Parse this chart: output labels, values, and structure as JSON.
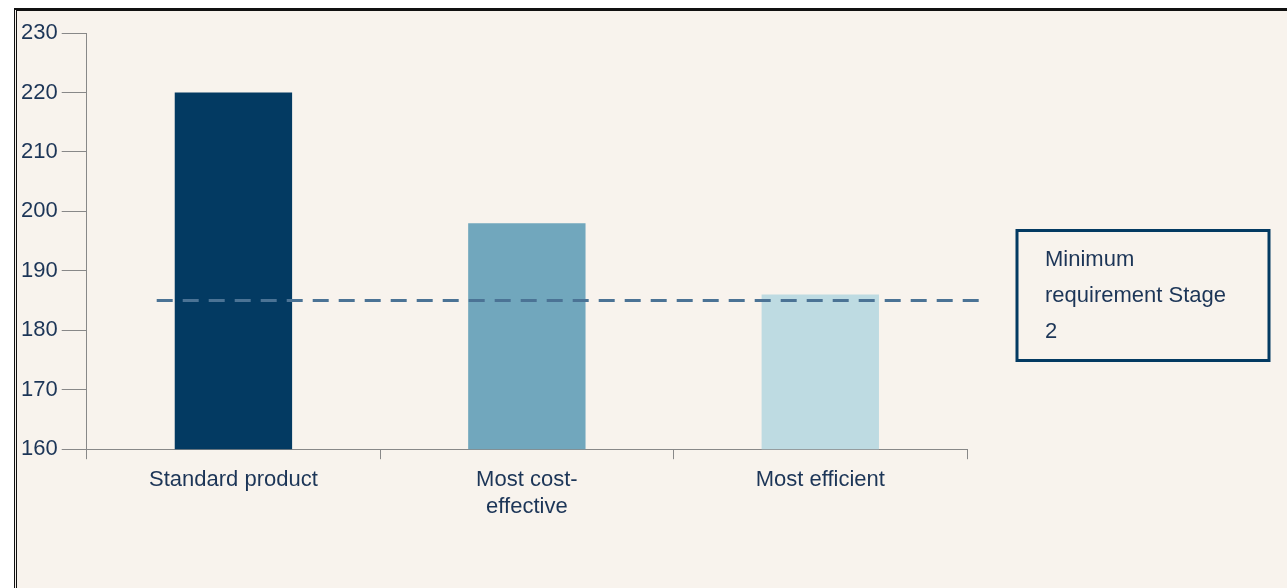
{
  "chart_data": {
    "type": "bar",
    "categories": [
      "Standard product",
      "Most cost-effective",
      "Most efficient"
    ],
    "values": [
      220,
      198,
      186
    ],
    "colors": [
      "#033a62",
      "#71a7bd",
      "#bedbe2"
    ],
    "ylim": [
      160,
      230
    ],
    "yticks": [
      160,
      170,
      180,
      190,
      200,
      210,
      220,
      230
    ],
    "grid": false,
    "legend": false,
    "ref_lines": [
      {
        "axis": "y",
        "value": 185,
        "label": "Minimum requirement Stage 2",
        "color": "#4b7395",
        "line_style": "dashed"
      }
    ]
  }
}
